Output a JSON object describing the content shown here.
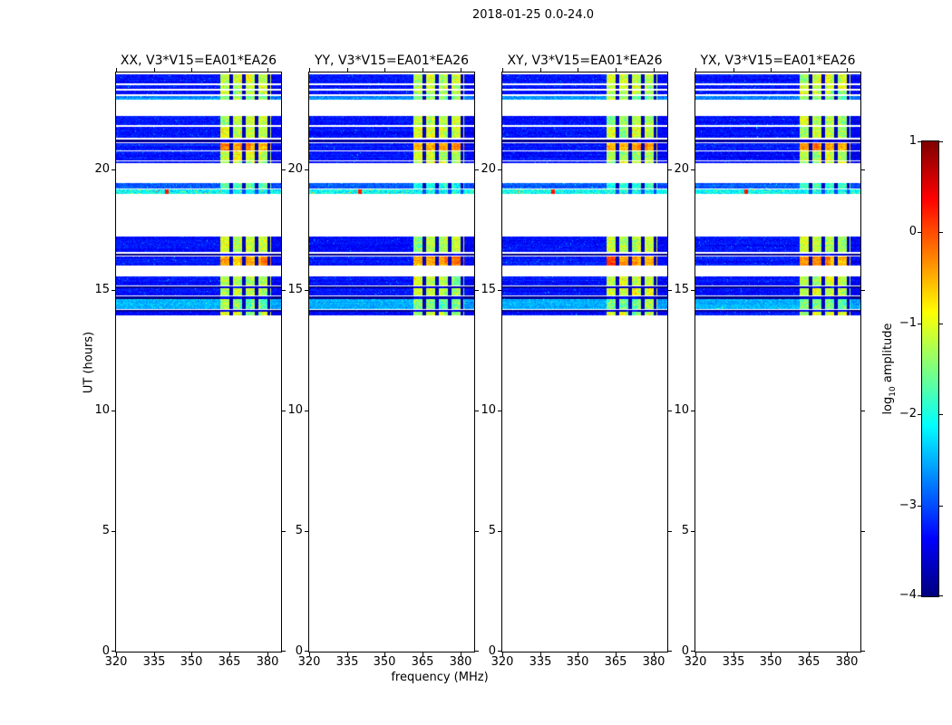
{
  "figure": {
    "title": "2018-01-25 0.0-24.0"
  },
  "chart_data": {
    "type": "heatmap",
    "title": "2018-01-25 0.0-24.0",
    "xlabel": "frequency (MHz)",
    "ylabel": "UT (hours)",
    "panels": [
      {
        "label": "XX, V3*V15=EA01*EA26",
        "pol": "xx"
      },
      {
        "label": "YY, V3*V15=EA01*EA26",
        "pol": "yy"
      },
      {
        "label": "XY, V3*V15=EA01*EA26",
        "pol": "xy"
      },
      {
        "label": "YX, V3*V15=EA01*EA26",
        "pol": "yx"
      }
    ],
    "x_ticks": [
      320,
      335,
      350,
      365,
      380
    ],
    "y_ticks": [
      0,
      5,
      10,
      15,
      20
    ],
    "x_range_mhz": [
      320,
      385.4
    ],
    "y_range_hours": [
      0,
      24
    ],
    "colorbar": {
      "label_prefix": "log",
      "label_sub": "10",
      "label_suffix": " amplitude",
      "ticks": [
        1,
        0,
        -1,
        -2,
        -3,
        -4
      ],
      "range": [
        -4,
        1
      ],
      "colormap": "jet"
    },
    "rfi": {
      "freq_start_mhz": 361,
      "freq_end_mhz": 381.3,
      "dark_line_freqs_mhz": [
        365.4,
        370.5,
        375.6,
        380.4
      ],
      "block_width_mhz": 4.1,
      "flare_dot_freq_mhz": 340
    },
    "band_kinds": {
      "n": {
        "level": -3.3,
        "sigma": 0.25,
        "rfi_level": -1.2,
        "rfi_sigma": 0.5
      },
      "no": {
        "level": -3.25,
        "sigma": 0.25,
        "rfi_level": -0.35,
        "rfi_sigma": 0.3
      },
      "c": {
        "level": -2.7,
        "sigma": 0.3,
        "rfi_level": -1.5,
        "rfi_sigma": 0.4
      },
      "b": {
        "level": -2.95,
        "sigma": 0.28,
        "rfi_level": -1.9,
        "rfi_sigma": 0.4
      },
      "q": {
        "level": -2.5,
        "sigma": 0.28,
        "rfi_level": -1.5,
        "rfi_sigma": 0.5
      },
      "f": {
        "level": -2.1,
        "sigma": 0.5,
        "rfi_level": -1.9,
        "rfi_sigma": 0.5,
        "speckle": true
      },
      "d": {
        "level": -3.9,
        "sigma": 0.07,
        "rfi_level": -3.5,
        "rfi_sigma": 0.25
      }
    },
    "bands": [
      {
        "ut_start": 23.55,
        "ut_end": 23.93,
        "kind": "n"
      },
      {
        "ut_start": 23.32,
        "ut_end": 23.47,
        "kind": "n"
      },
      {
        "ut_start": 23.1,
        "ut_end": 23.25,
        "kind": "n"
      },
      {
        "ut_start": 22.87,
        "ut_end": 23.02,
        "kind": "c"
      },
      {
        "ut_start": 21.82,
        "ut_end": 22.2,
        "kind": "n"
      },
      {
        "ut_start": 21.3,
        "ut_end": 21.75,
        "kind": "n"
      },
      {
        "ut_start": 21.11,
        "ut_end": 21.22,
        "kind": "d"
      },
      {
        "ut_start": 20.77,
        "ut_end": 21.07,
        "kind": "no"
      },
      {
        "ut_start": 20.36,
        "ut_end": 20.73,
        "kind": "n"
      },
      {
        "ut_start": 20.24,
        "ut_end": 20.32,
        "kind": "n"
      },
      {
        "ut_start": 19.19,
        "ut_end": 19.42,
        "kind": "b"
      },
      {
        "ut_start": 18.97,
        "ut_end": 19.15,
        "kind": "f"
      },
      {
        "ut_start": 16.56,
        "ut_end": 17.2,
        "kind": "n"
      },
      {
        "ut_start": 16.42,
        "ut_end": 16.5,
        "kind": "d"
      },
      {
        "ut_start": 16.0,
        "ut_end": 16.38,
        "kind": "no"
      },
      {
        "ut_start": 15.17,
        "ut_end": 15.55,
        "kind": "n"
      },
      {
        "ut_start": 15.06,
        "ut_end": 15.14,
        "kind": "d"
      },
      {
        "ut_start": 14.76,
        "ut_end": 15.06,
        "kind": "n"
      },
      {
        "ut_start": 14.62,
        "ut_end": 14.72,
        "kind": "d"
      },
      {
        "ut_start": 14.2,
        "ut_end": 14.62,
        "kind": "q"
      },
      {
        "ut_start": 14.08,
        "ut_end": 14.16,
        "kind": "d"
      },
      {
        "ut_start": 13.93,
        "ut_end": 14.08,
        "kind": "n"
      }
    ]
  }
}
